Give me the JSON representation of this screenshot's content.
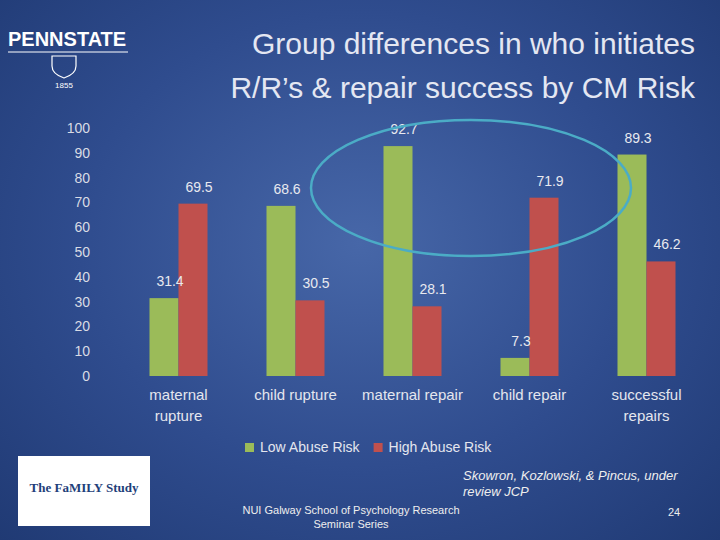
{
  "chart_data": {
    "type": "bar",
    "title": "Group differences in who initiates R/R’s & repair success by CM Risk",
    "categories": [
      "maternal rupture",
      "child rupture",
      "maternal repair",
      "child repair",
      "successful repairs"
    ],
    "series": [
      {
        "name": "Low Abuse Risk",
        "color": "#9bbb59",
        "values": [
          31.4,
          68.6,
          92.7,
          7.3,
          89.3
        ]
      },
      {
        "name": "High Abuse Risk",
        "color": "#c0504d",
        "values": [
          69.5,
          30.5,
          28.1,
          71.9,
          46.2
        ]
      }
    ],
    "ylim": [
      0,
      100
    ],
    "yticks": [
      0,
      10,
      20,
      30,
      40,
      50,
      60,
      70,
      80,
      90,
      100
    ],
    "grid": false,
    "legend": "bottom",
    "data_labels": true
  },
  "header": {
    "logo": "PENNSTATE",
    "logo_year": "1855"
  },
  "footer": {
    "citation": "Skowron, Kozlowski, & Pincus, under review JCP",
    "venue": "NUI Galway School of Psychology Research Seminar Series",
    "page": "24",
    "logo": "The FaMILY Study"
  }
}
